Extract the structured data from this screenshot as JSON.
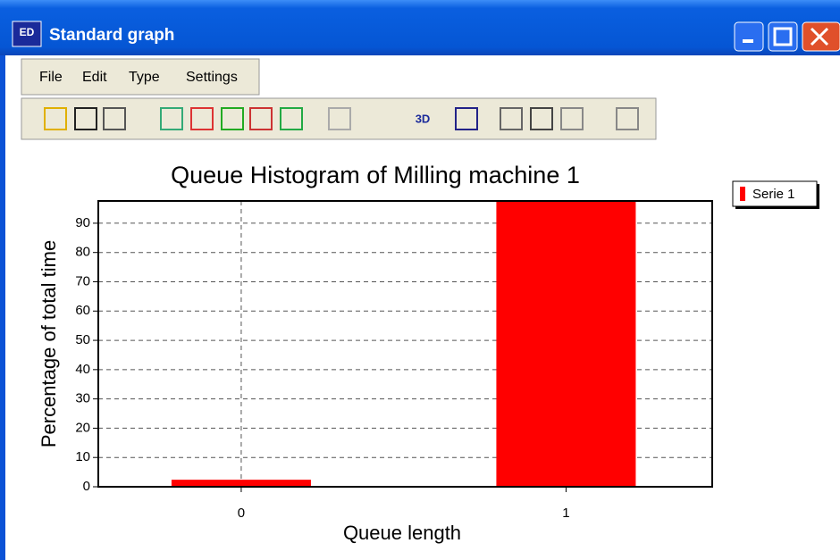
{
  "window": {
    "title": "Standard graph",
    "icon_text": "ED"
  },
  "menu": [
    "File",
    "Edit",
    "Type",
    "Settings"
  ],
  "toolbar_text": "3D",
  "chart_data": {
    "type": "bar",
    "title": "Queue Histogram of Milling machine 1",
    "x_label": "Queue length",
    "y_label": "Percentage of total time",
    "x": [
      0,
      1
    ],
    "series": [
      {
        "name": "Serie 1",
        "color": "#ff0000",
        "values": [
          2.4,
          97.6
        ]
      }
    ],
    "xlim": [
      -0.44,
      1.45
    ],
    "xticks": [
      0,
      1
    ],
    "ylim": [
      0,
      97.6
    ],
    "yticks": [
      0,
      10,
      20,
      30,
      40,
      50,
      60,
      70,
      80,
      90
    ],
    "grid": true,
    "legend": "right"
  }
}
